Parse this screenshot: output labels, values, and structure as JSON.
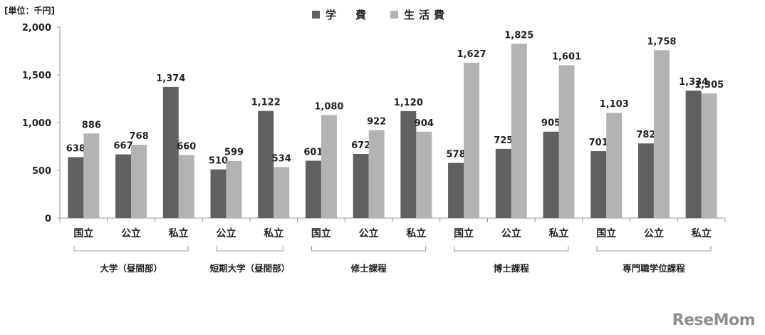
{
  "unit_label": "[単位：千円]",
  "legend": [
    {
      "label": "学　費",
      "color": "#606060"
    },
    {
      "label": "生活費",
      "color": "#b3b3b3"
    }
  ],
  "brand": {
    "part1": "Rese",
    "part2": "Mom"
  },
  "chart_data": {
    "type": "bar",
    "ylim": [
      0,
      2000
    ],
    "yticks": [
      0,
      500,
      1000,
      1500,
      2000
    ],
    "ytick_labels": [
      "0",
      "500",
      "1,000",
      "1,500",
      "2,000"
    ],
    "series": [
      {
        "name": "学　費",
        "color": "#606060"
      },
      {
        "name": "生活費",
        "color": "#b3b3b3"
      }
    ],
    "groups": [
      {
        "label": "大学（昼間部）",
        "categories": [
          {
            "label": "国立",
            "values": [
              638,
              886
            ],
            "labels": [
              "638",
              "886"
            ]
          },
          {
            "label": "公立",
            "values": [
              667,
              768
            ],
            "labels": [
              "667",
              "768"
            ]
          },
          {
            "label": "私立",
            "values": [
              1374,
              660
            ],
            "labels": [
              "1,374",
              "660"
            ]
          }
        ]
      },
      {
        "label": "短期大学（昼間部）",
        "categories": [
          {
            "label": "公立",
            "values": [
              510,
              599
            ],
            "labels": [
              "510",
              "599"
            ]
          },
          {
            "label": "私立",
            "values": [
              1122,
              534
            ],
            "labels": [
              "1,122",
              "534"
            ]
          }
        ]
      },
      {
        "label": "修士課程",
        "categories": [
          {
            "label": "国立",
            "values": [
              601,
              1080
            ],
            "labels": [
              "601",
              "1,080"
            ]
          },
          {
            "label": "公立",
            "values": [
              672,
              922
            ],
            "labels": [
              "672",
              "922"
            ]
          },
          {
            "label": "私立",
            "values": [
              1120,
              904
            ],
            "labels": [
              "1,120",
              "904"
            ]
          }
        ]
      },
      {
        "label": "博士課程",
        "categories": [
          {
            "label": "国立",
            "values": [
              578,
              1627
            ],
            "labels": [
              "578",
              "1,627"
            ]
          },
          {
            "label": "公立",
            "values": [
              725,
              1825
            ],
            "labels": [
              "725",
              "1,825"
            ]
          },
          {
            "label": "私立",
            "values": [
              905,
              1601
            ],
            "labels": [
              "905",
              "1,601"
            ]
          }
        ]
      },
      {
        "label": "専門職学位課程",
        "categories": [
          {
            "label": "国立",
            "values": [
              701,
              1103
            ],
            "labels": [
              "701",
              "1,103"
            ]
          },
          {
            "label": "公立",
            "values": [
              782,
              1758
            ],
            "labels": [
              "782",
              "1,758"
            ]
          },
          {
            "label": "私立",
            "values": [
              1334,
              1305
            ],
            "labels": [
              "1,334",
              "1,305"
            ]
          }
        ]
      }
    ]
  }
}
